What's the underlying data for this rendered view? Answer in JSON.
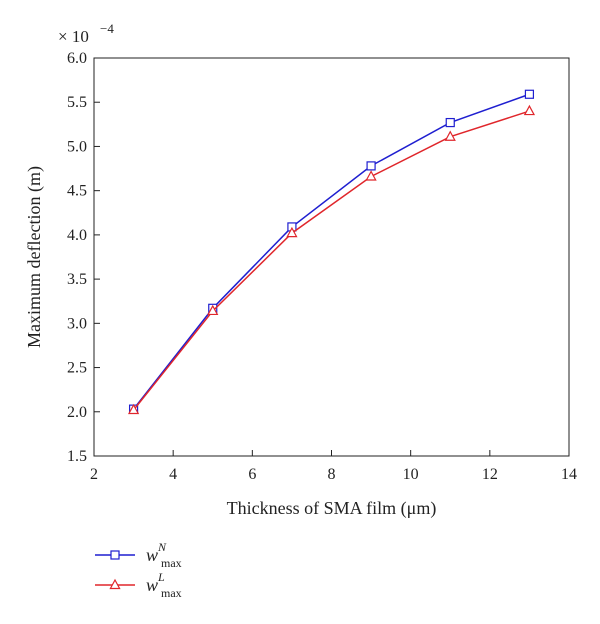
{
  "chart_data": {
    "type": "line",
    "title": "",
    "xlabel": "Thickness of SMA film (μm)",
    "ylabel": "Maximum deflection (m)",
    "y_multiplier": "× 10",
    "y_multiplier_exp": "−4",
    "xlim": [
      2,
      14
    ],
    "ylim": [
      1.5,
      6.0
    ],
    "xticks": [
      2,
      4,
      6,
      8,
      10,
      12,
      14
    ],
    "yticks": [
      1.5,
      2.0,
      2.5,
      3.0,
      3.5,
      4.0,
      4.5,
      5.0,
      5.5,
      6.0
    ],
    "xtick_labels": [
      "2",
      "4",
      "6",
      "8",
      "10",
      "12",
      "14"
    ],
    "ytick_labels": [
      "1.5",
      "2.0",
      "2.5",
      "3.0",
      "3.5",
      "4.0",
      "4.5",
      "5.0",
      "5.5",
      "6.0"
    ],
    "grid": false,
    "legend_position": "bottom-left outside",
    "x": [
      3,
      5,
      7,
      9,
      11,
      13
    ],
    "series": [
      {
        "name": "w",
        "legend_sup": "N",
        "legend_sub": "max",
        "color": "#1f1fd0",
        "marker": "square",
        "values": [
          2.03,
          3.17,
          4.09,
          4.78,
          5.27,
          5.59
        ]
      },
      {
        "name": "w",
        "legend_sup": "L",
        "legend_sub": "max",
        "color": "#e0262b",
        "marker": "triangle",
        "values": [
          2.02,
          3.14,
          4.02,
          4.66,
          5.11,
          5.4
        ]
      }
    ]
  }
}
